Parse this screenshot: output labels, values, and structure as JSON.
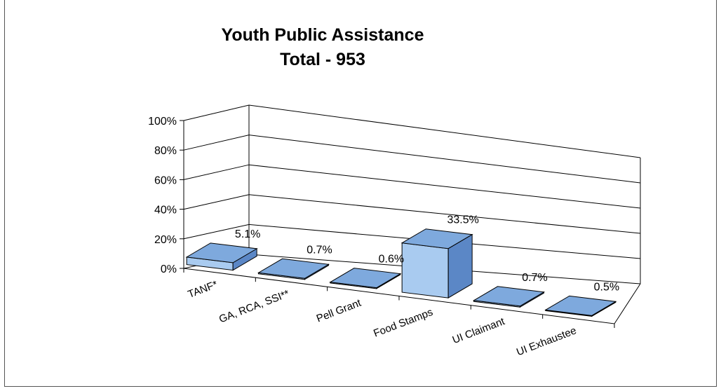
{
  "chart_data": {
    "type": "bar",
    "title": "Youth Public Assistance",
    "subtitle": "Total - 953",
    "categories": [
      "TANF*",
      "GA, RCA, SSI**",
      "Pell Grant",
      "Food Stamps",
      "UI Claimant",
      "UI Exhaustee"
    ],
    "values": [
      5.1,
      0.7,
      0.6,
      33.5,
      0.7,
      0.5
    ],
    "data_labels": [
      "5.1%",
      "0.7%",
      "0.6%",
      "33.5%",
      "0.7%",
      "0.5%"
    ],
    "ylim": [
      0,
      100
    ],
    "yticks": [
      "0%",
      "20%",
      "40%",
      "60%",
      "80%",
      "100%"
    ],
    "grid": true,
    "legend": "none",
    "colors": {
      "bar_front": "#a9cbf0",
      "bar_top": "#7ea9dd",
      "bar_side": "#5b87c6",
      "bar_edge": "#000000",
      "grid": "#000000"
    }
  }
}
